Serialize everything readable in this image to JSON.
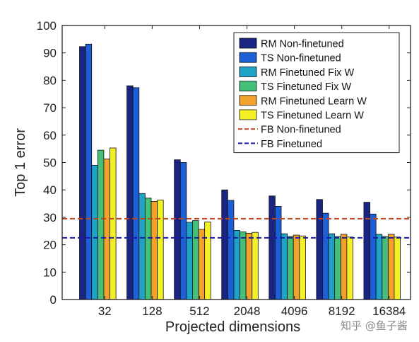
{
  "chart_data": {
    "type": "bar",
    "title": "",
    "xlabel": "Projected dimensions",
    "ylabel": "Top 1 error",
    "categories": [
      "32",
      "128",
      "512",
      "2048",
      "4096",
      "8192",
      "16384"
    ],
    "ylim": [
      0,
      100
    ],
    "yticks": [
      "0",
      "10",
      "20",
      "30",
      "40",
      "50",
      "60",
      "70",
      "80",
      "90",
      "100"
    ],
    "series": [
      {
        "name": "RM Non-finetuned",
        "color": "#1a2483",
        "values": [
          92.3,
          78,
          51,
          40,
          37.8,
          36.5,
          35.5
        ]
      },
      {
        "name": "TS Non-finetuned",
        "color": "#1d5fd6",
        "values": [
          93.2,
          77.3,
          50,
          36.2,
          34,
          31.5,
          31.2
        ]
      },
      {
        "name": "RM Finetuned Fix W",
        "color": "#1ea2c6",
        "values": [
          49,
          38.7,
          28.2,
          25.2,
          24,
          24,
          23.8
        ]
      },
      {
        "name": "TS Finetuned Fix W",
        "color": "#45c07a",
        "values": [
          54.5,
          37,
          28.8,
          24.7,
          23,
          23,
          23
        ]
      },
      {
        "name": "RM Finetuned Learn W",
        "color": "#f0a22a",
        "values": [
          51.3,
          35.8,
          25.6,
          24.2,
          23.5,
          23.8,
          23.8
        ]
      },
      {
        "name": "TS Finetuned Learn W",
        "color": "#f4f025",
        "values": [
          55.3,
          36.3,
          28.3,
          24.5,
          23.2,
          22.8,
          22.8
        ]
      }
    ],
    "reference_lines": [
      {
        "name": "FB Non-finetuned",
        "color": "#c0441c",
        "value": 29.5
      },
      {
        "name": "FB Finetuned",
        "color": "#1a1aa8",
        "value": 22.5
      }
    ],
    "grid": false,
    "legend_position": "top-right"
  },
  "watermark": "知乎 @鱼子酱"
}
